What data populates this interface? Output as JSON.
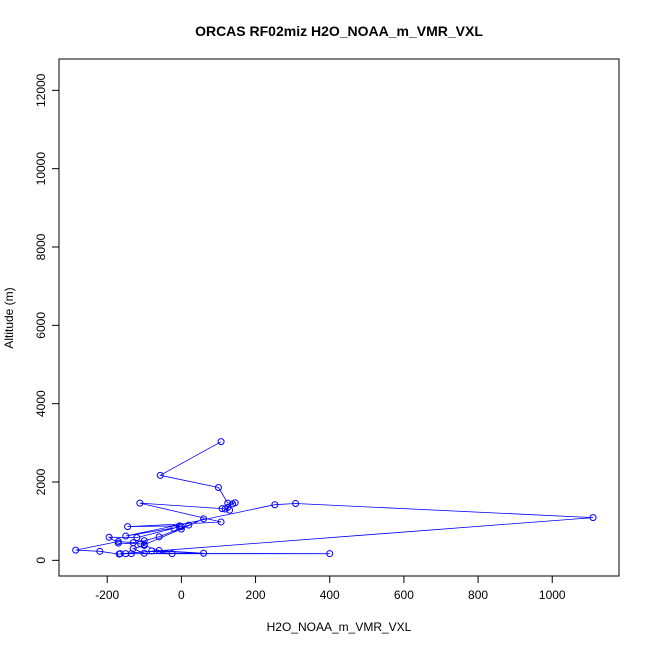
{
  "chart_data": {
    "type": "line",
    "title": "ORCAS RF02miz H2O_NOAA_m_VMR_VXL",
    "xlabel": "H2O_NOAA_m_VMR_VXL",
    "ylabel": "Altitude (m)",
    "xlim": [
      -330,
      1180
    ],
    "ylim": [
      -400,
      12800
    ],
    "xticks": [
      -200,
      0,
      200,
      400,
      600,
      800,
      1000
    ],
    "yticks": [
      0,
      2000,
      4000,
      6000,
      8000,
      10000,
      12000
    ],
    "grid": false,
    "legend": "none",
    "series": [
      {
        "color": "#0000ff",
        "marker": "open-circle",
        "points": [
          [
            107,
            3030
          ],
          [
            -57,
            2170
          ],
          [
            100,
            1860
          ],
          [
            125,
            1460
          ],
          [
            145,
            1470
          ],
          [
            138,
            1440
          ],
          [
            125,
            1350
          ],
          [
            118,
            1310
          ],
          [
            130,
            1280
          ],
          [
            110,
            1320
          ],
          [
            -112,
            1460
          ],
          [
            107,
            980
          ],
          [
            -145,
            860
          ],
          [
            -5,
            880
          ],
          [
            -20,
            820
          ],
          [
            -120,
            580
          ],
          [
            -195,
            590
          ],
          [
            -170,
            440
          ],
          [
            -110,
            420
          ],
          [
            -100,
            400
          ],
          [
            0,
            800
          ],
          [
            60,
            1060
          ],
          [
            20,
            900
          ],
          [
            -60,
            600
          ],
          [
            -100,
            500
          ],
          [
            -130,
            450
          ],
          [
            -170,
            480
          ],
          [
            -285,
            260
          ],
          [
            -220,
            230
          ],
          [
            -168,
            160
          ],
          [
            -150,
            170
          ],
          [
            -135,
            170
          ],
          [
            -25,
            170
          ],
          [
            -80,
            240
          ],
          [
            60,
            180
          ],
          [
            -60,
            250
          ],
          [
            -100,
            380
          ],
          [
            -130,
            300
          ],
          [
            -100,
            180
          ],
          [
            400,
            170
          ],
          [
            -165,
            170
          ],
          [
            1110,
            1090
          ],
          [
            308,
            1450
          ],
          [
            252,
            1420
          ],
          [
            -150,
            620
          ],
          [
            0,
            860
          ]
        ]
      }
    ]
  }
}
